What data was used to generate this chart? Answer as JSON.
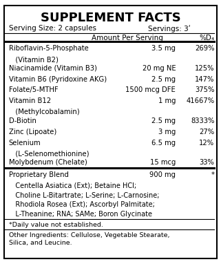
{
  "title": "SUPPLEMENT FACTS",
  "serving_size": "Serving Size: 2 capsules",
  "servings": "Servings: 3ʹ",
  "col_header_amount": "Amount Per Serving",
  "col_header_dv": "%D₄",
  "rows": [
    {
      "name": "Riboflavin-5-Phosphate",
      "name2": "   (Vitamin B2)",
      "amount": "3.5 mg",
      "dv": "269%"
    },
    {
      "name": "Niacinamide (Vitamin B3)",
      "name2": null,
      "amount": "20 mg NE",
      "dv": "125%"
    },
    {
      "name": "Vitamin B6 (Pyridoxine AKG)",
      "name2": null,
      "amount": "2.5 mg",
      "dv": "147%"
    },
    {
      "name": "Folate/5-MTHF",
      "name2": null,
      "amount": "1500 mcg DFE",
      "dv": "375%"
    },
    {
      "name": "Vitamin B12",
      "name2": "   (Methylcobalamin)",
      "amount": "1 mg",
      "dv": "41667%"
    },
    {
      "name": "D-Biotin",
      "name2": null,
      "amount": "2.5 mg",
      "dv": "8333%"
    },
    {
      "name": "Zinc (Lipoate)",
      "name2": null,
      "amount": "3 mg",
      "dv": "27%"
    },
    {
      "name": "Selenium",
      "name2": "   (L-Selenomethionine)",
      "amount": "6.5 mg",
      "dv": "12%"
    },
    {
      "name": "Molybdenum (Chelate)",
      "name2": null,
      "amount": "15 mcg",
      "dv": "33%"
    }
  ],
  "proprietary_blend_name": "Proprietary Blend",
  "proprietary_blend_amount": "900 mg",
  "proprietary_blend_dv": "*",
  "proprietary_blend_ingredients": [
    "   Centella Asiatica (Ext); Betaine HCl;",
    "   Choline L-Bitartrate; L-Serine; L-Carnosine;",
    "   Rhodiola Rosea (Ext); Ascorbyl Palmitate;",
    "   L-Theanine; RNA; SAMe; Boron Glycinate"
  ],
  "footnote": "*Daily value not established.",
  "other_ingredients": "Other Ingredients: Cellulose, Vegetable Stearate,\nSilica, and Leucine.",
  "bg_color": "#ffffff",
  "text_color": "#000000",
  "border_color": "#000000",
  "title_fontsize": 13,
  "header_fontsize": 7.5,
  "row_fontsize": 7.2,
  "small_fontsize": 6.8
}
